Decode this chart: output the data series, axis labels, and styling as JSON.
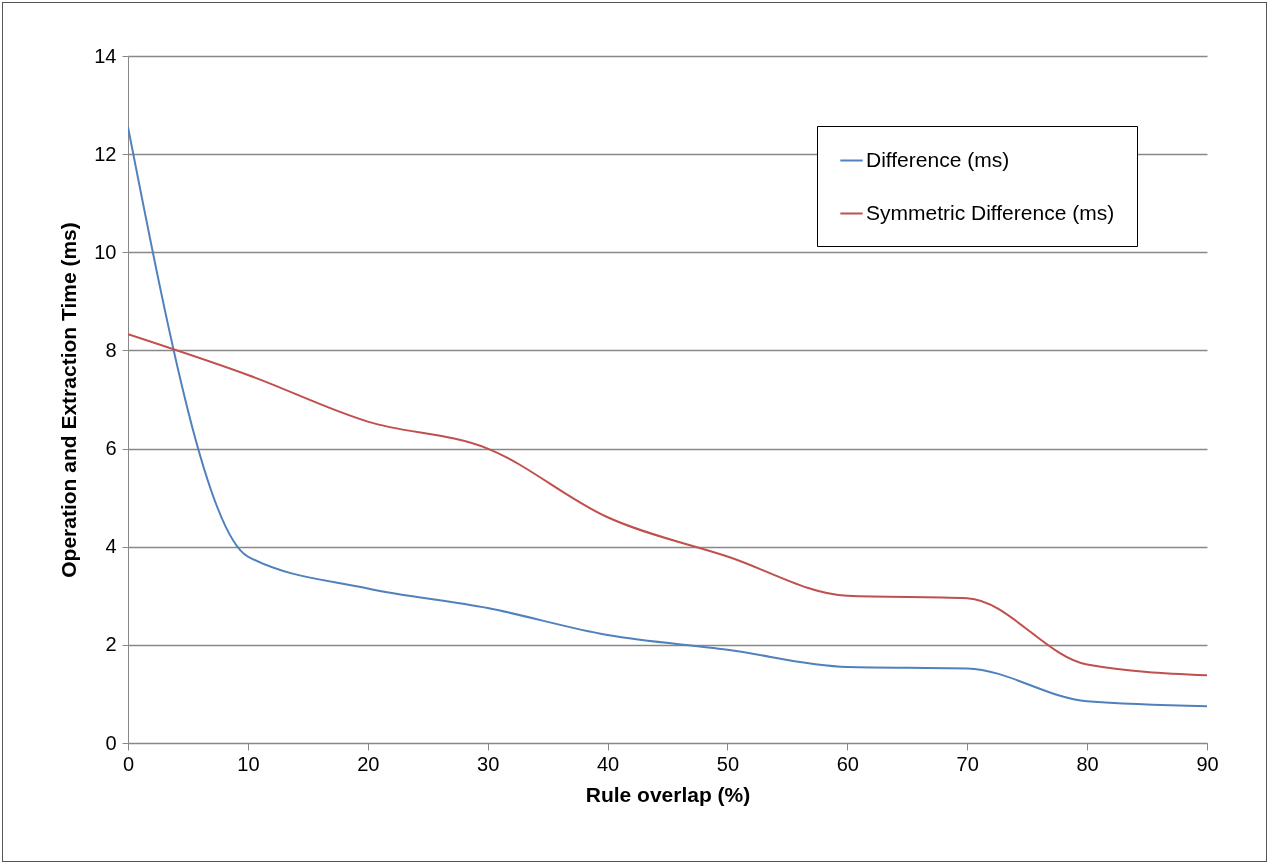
{
  "chart_data": {
    "type": "line",
    "xlabel": "Rule overlap (%)",
    "ylabel": "Operation and Extraction Time (ms)",
    "x": [
      0,
      10,
      20,
      30,
      40,
      50,
      60,
      70,
      80,
      90
    ],
    "series": [
      {
        "name": "Difference (ms)",
        "color": "#4f81bd",
        "values": [
          12.55,
          3.8,
          3.15,
          2.75,
          2.2,
          1.9,
          1.55,
          1.52,
          0.85,
          0.75
        ]
      },
      {
        "name": "Symmetric Difference (ms)",
        "color": "#c0504d",
        "values": [
          8.33,
          7.5,
          6.55,
          6.0,
          4.6,
          3.8,
          3.0,
          2.95,
          1.6,
          1.38
        ]
      }
    ],
    "xlim": [
      0,
      90
    ],
    "xticks": [
      0,
      10,
      20,
      30,
      40,
      50,
      60,
      70,
      80,
      90
    ],
    "ylim": [
      0,
      14
    ],
    "yticks": [
      0,
      2,
      4,
      6,
      8,
      10,
      12,
      14
    ],
    "grid": "y",
    "legend": "top right",
    "marker": "none",
    "line_style": "solid"
  }
}
